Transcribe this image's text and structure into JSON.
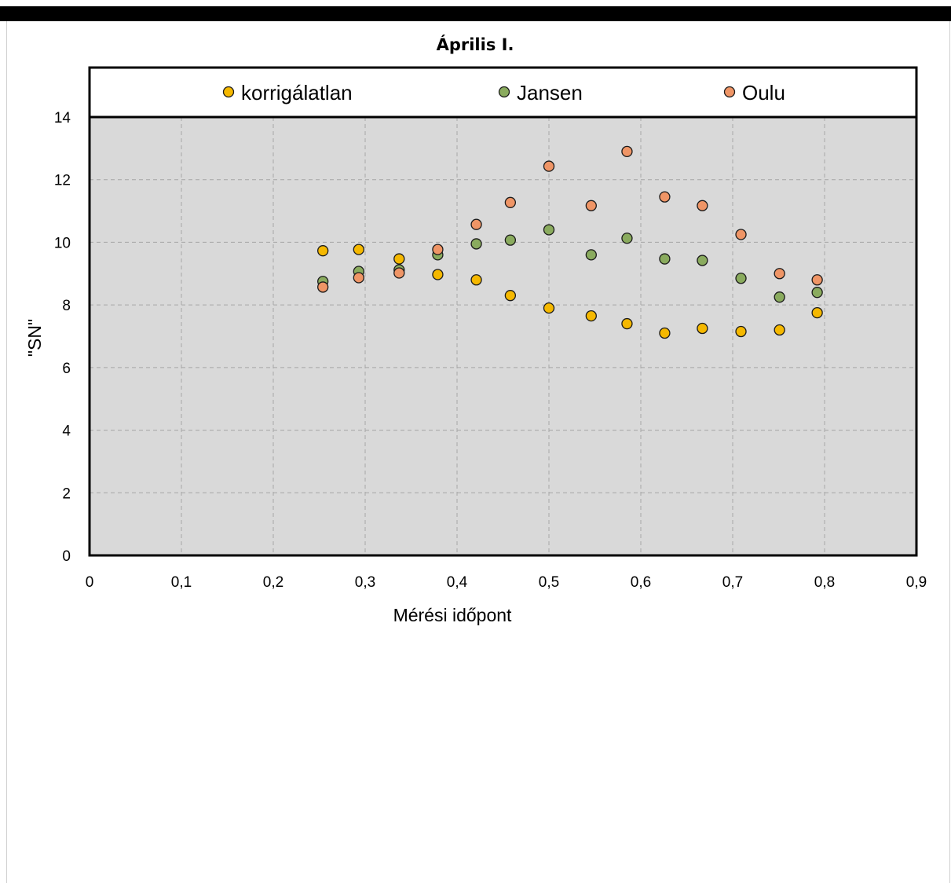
{
  "chart_data": {
    "type": "scatter",
    "title": "Április I.",
    "xlabel": "Mérési időpont",
    "ylabel": "\"SN\"",
    "xlim": [
      0,
      0.9
    ],
    "ylim": [
      0,
      14
    ],
    "x_ticks": [
      "0",
      "0,1",
      "0,2",
      "0,3",
      "0,4",
      "0,5",
      "0,6",
      "0,7",
      "0,8",
      "0,9"
    ],
    "y_ticks": [
      "0",
      "2",
      "4",
      "6",
      "8",
      "10",
      "12",
      "14"
    ],
    "grid": true,
    "legend_position": "top",
    "background": "#d9d9d9",
    "series": [
      {
        "name": "korrigálatlan",
        "color": "#f5b800",
        "points": [
          [
            0.254,
            9.73
          ],
          [
            0.293,
            9.77
          ],
          [
            0.337,
            9.47
          ],
          [
            0.379,
            8.97
          ],
          [
            0.421,
            8.8
          ],
          [
            0.458,
            8.3
          ],
          [
            0.5,
            7.9
          ],
          [
            0.546,
            7.65
          ],
          [
            0.585,
            7.4
          ],
          [
            0.626,
            7.1
          ],
          [
            0.667,
            7.25
          ],
          [
            0.709,
            7.15
          ],
          [
            0.751,
            7.2
          ],
          [
            0.792,
            7.75
          ]
        ]
      },
      {
        "name": "Jansen",
        "color": "#8aab5e",
        "points": [
          [
            0.254,
            8.75
          ],
          [
            0.293,
            9.07
          ],
          [
            0.337,
            9.12
          ],
          [
            0.379,
            9.6
          ],
          [
            0.421,
            9.95
          ],
          [
            0.458,
            10.07
          ],
          [
            0.5,
            10.4
          ],
          [
            0.546,
            9.6
          ],
          [
            0.585,
            10.13
          ],
          [
            0.626,
            9.47
          ],
          [
            0.667,
            9.42
          ],
          [
            0.709,
            8.85
          ],
          [
            0.751,
            8.25
          ],
          [
            0.792,
            8.4
          ]
        ]
      },
      {
        "name": "Oulu",
        "color": "#ef9566",
        "points": [
          [
            0.254,
            8.57
          ],
          [
            0.293,
            8.87
          ],
          [
            0.337,
            9.02
          ],
          [
            0.379,
            9.77
          ],
          [
            0.421,
            10.57
          ],
          [
            0.458,
            11.27
          ],
          [
            0.5,
            12.43
          ],
          [
            0.546,
            11.17
          ],
          [
            0.585,
            12.9
          ],
          [
            0.626,
            11.45
          ],
          [
            0.667,
            11.17
          ],
          [
            0.709,
            10.25
          ],
          [
            0.751,
            9.0
          ],
          [
            0.792,
            8.8
          ]
        ]
      }
    ]
  }
}
